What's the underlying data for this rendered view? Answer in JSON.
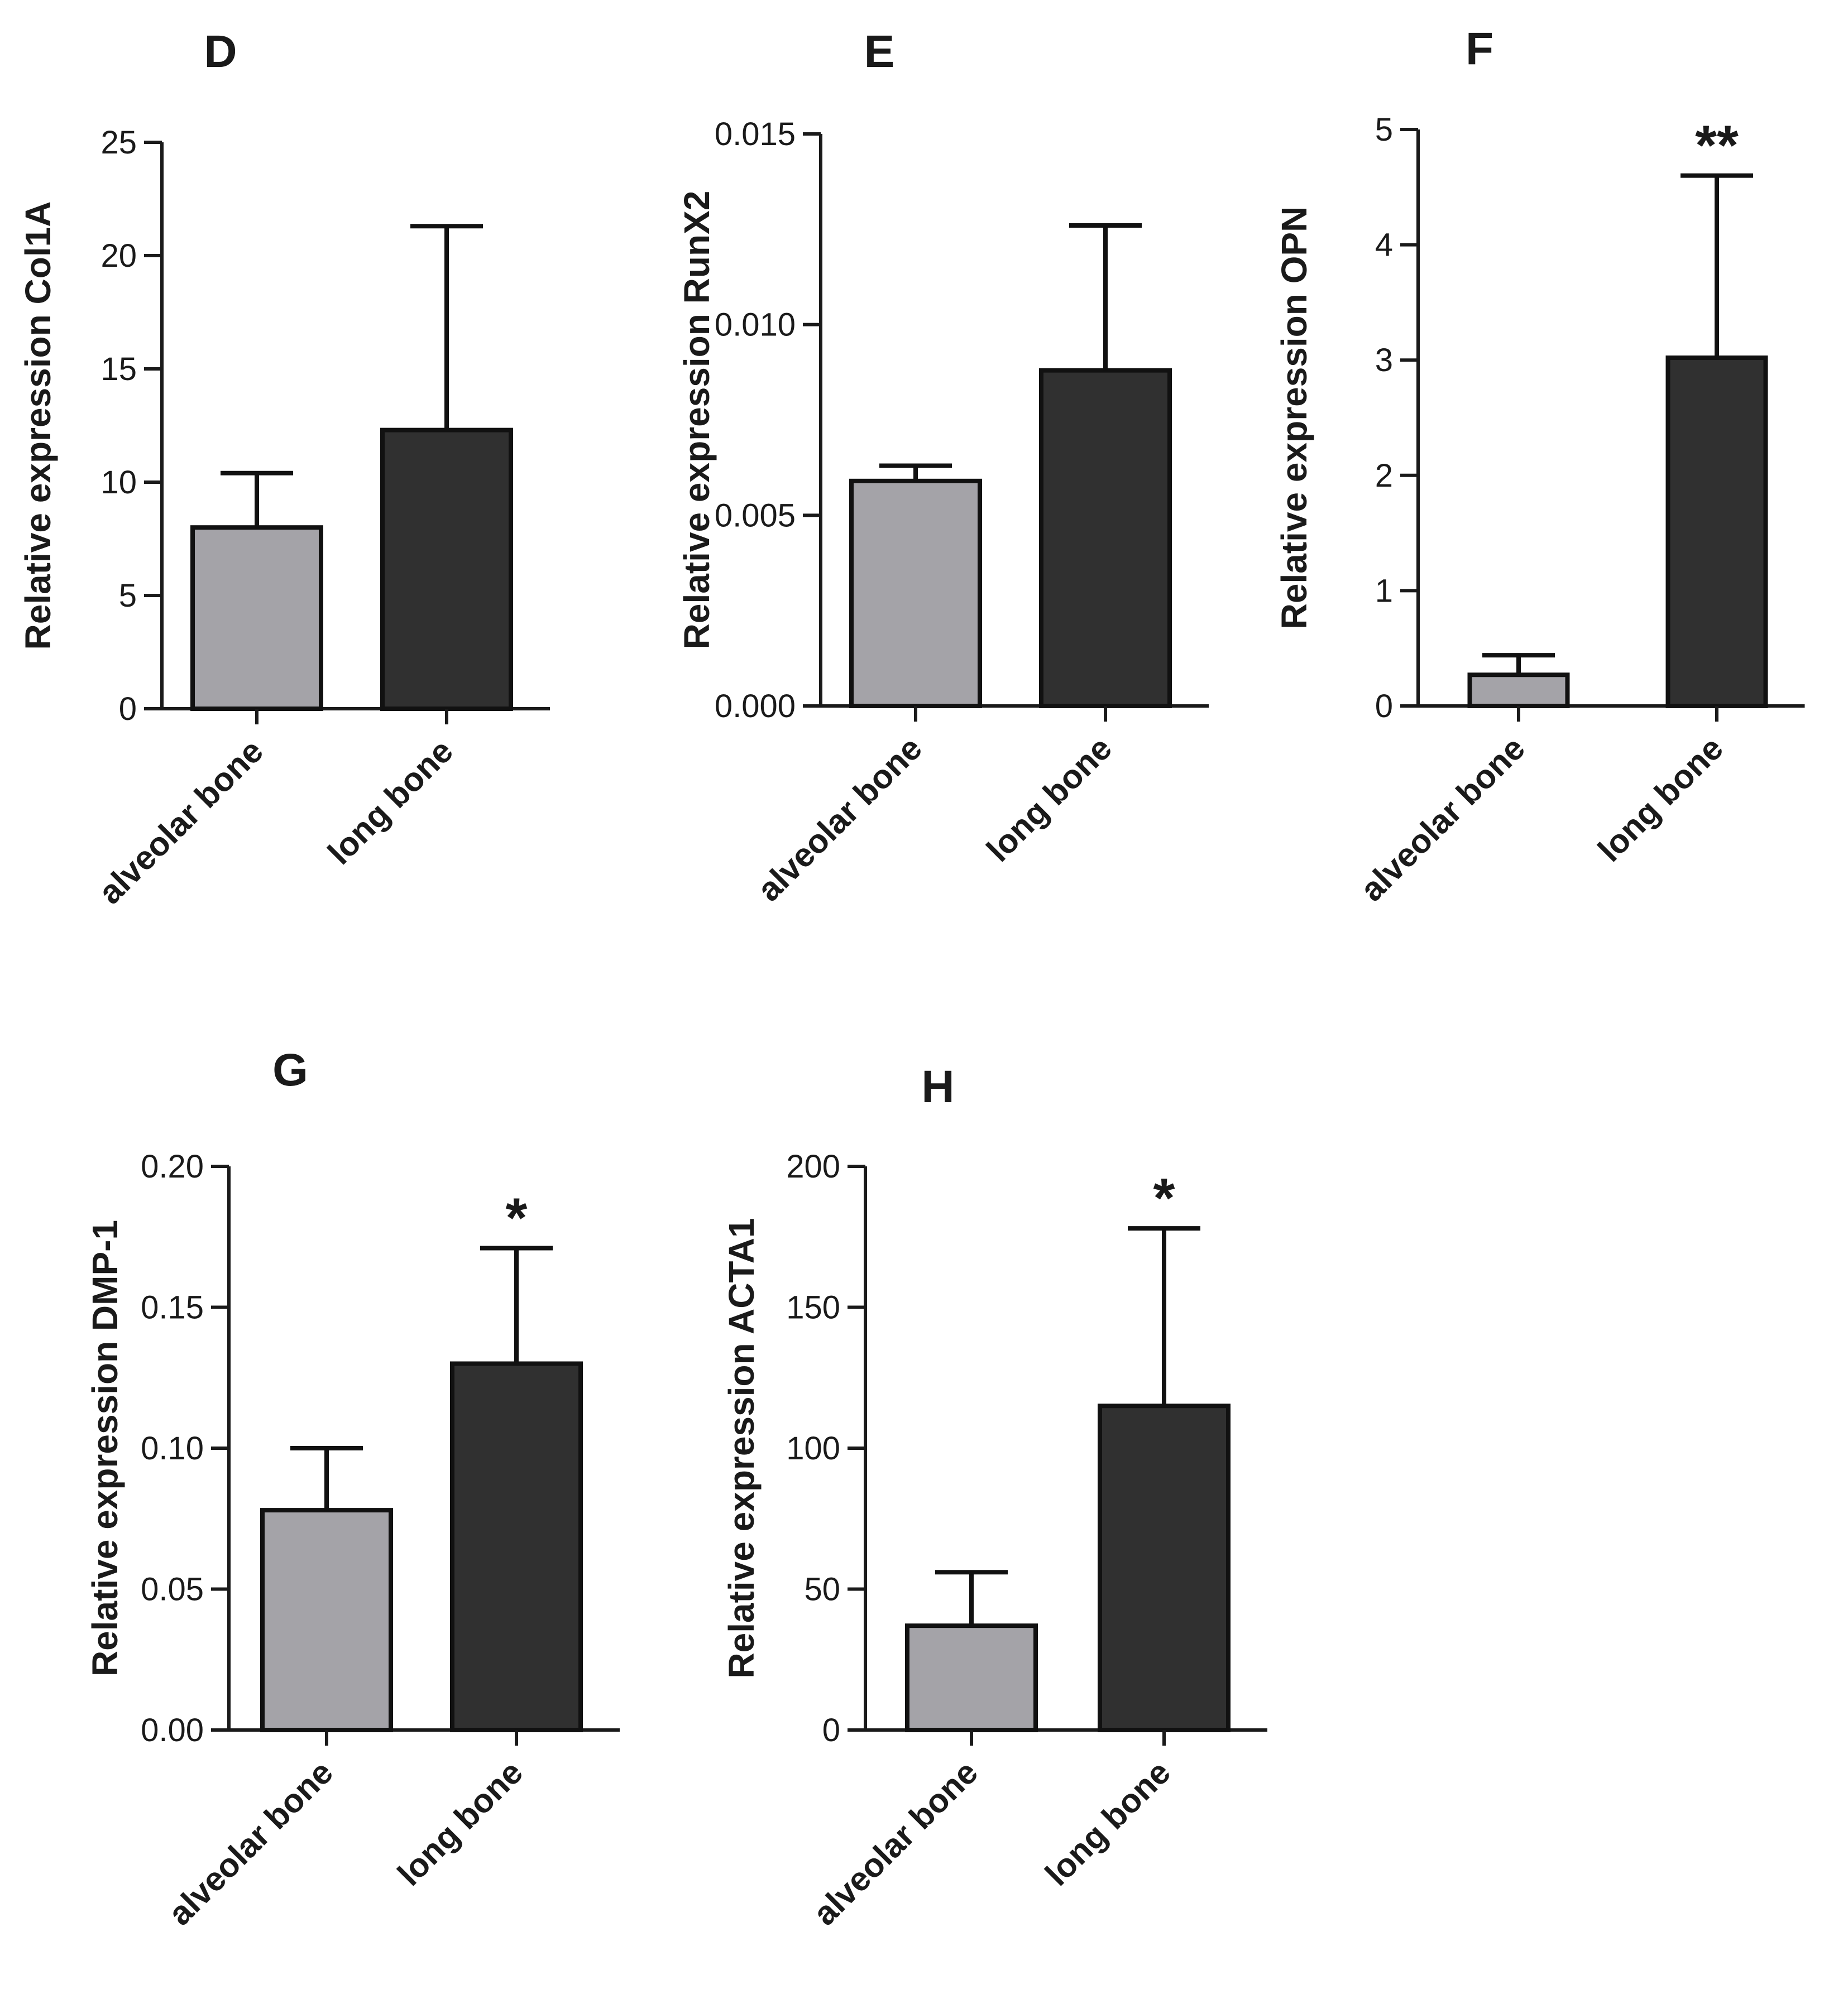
{
  "colors": {
    "alveolar_bone": "#a4a3a8",
    "long_bone": "#303030",
    "axis": "#1a1a1a"
  },
  "chart_data": [
    {
      "panel": "D",
      "type": "bar",
      "ylabel": "Relative expression  Col1A",
      "categories": [
        "alveolar bone",
        "long bone"
      ],
      "values": [
        8.0,
        12.3
      ],
      "errors": [
        2.4,
        9.0
      ],
      "ylim": [
        0,
        25
      ],
      "yticks": [
        0,
        5,
        10,
        15,
        20,
        25
      ],
      "ytick_labels": [
        "0",
        "5",
        "10",
        "15",
        "20",
        "25"
      ],
      "significance": [
        "",
        ""
      ]
    },
    {
      "panel": "E",
      "type": "bar",
      "ylabel": "Relative expression RunX2",
      "categories": [
        "alveolar bone",
        "long bone"
      ],
      "values": [
        0.0059,
        0.0088
      ],
      "errors": [
        0.0004,
        0.0038
      ],
      "ylim": [
        0,
        0.015
      ],
      "yticks": [
        0,
        0.005,
        0.01,
        0.015
      ],
      "ytick_labels": [
        "0.000",
        "0.005",
        "0.010",
        "0.015"
      ],
      "significance": [
        "",
        ""
      ]
    },
    {
      "panel": "F",
      "type": "bar",
      "ylabel": "Relative expression OPN",
      "categories": [
        "alveolar bone",
        "long bone"
      ],
      "values": [
        0.27,
        3.02
      ],
      "errors": [
        0.17,
        1.58
      ],
      "ylim": [
        0,
        5
      ],
      "yticks": [
        0,
        1,
        2,
        3,
        4,
        5
      ],
      "ytick_labels": [
        "0",
        "1",
        "2",
        "3",
        "4",
        "5"
      ],
      "significance": [
        "",
        "**"
      ]
    },
    {
      "panel": "G",
      "type": "bar",
      "ylabel": "Relative expression DMP-1",
      "categories": [
        "alveolar bone",
        "long bone"
      ],
      "values": [
        0.078,
        0.13
      ],
      "errors": [
        0.022,
        0.041
      ],
      "ylim": [
        0,
        0.2
      ],
      "yticks": [
        0,
        0.05,
        0.1,
        0.15,
        0.2
      ],
      "ytick_labels": [
        "0.00",
        "0.05",
        "0.10",
        "0.15",
        "0.20"
      ],
      "significance": [
        "",
        "*"
      ]
    },
    {
      "panel": "H",
      "type": "bar",
      "ylabel": "Relative expression ACTA1",
      "categories": [
        "alveolar bone",
        "long bone"
      ],
      "values": [
        37,
        115
      ],
      "errors": [
        19,
        63
      ],
      "ylim": [
        0,
        200
      ],
      "yticks": [
        0,
        50,
        100,
        150,
        200
      ],
      "ytick_labels": [
        "0",
        "50",
        "100",
        "150",
        "200"
      ],
      "significance": [
        "",
        "*"
      ]
    }
  ]
}
